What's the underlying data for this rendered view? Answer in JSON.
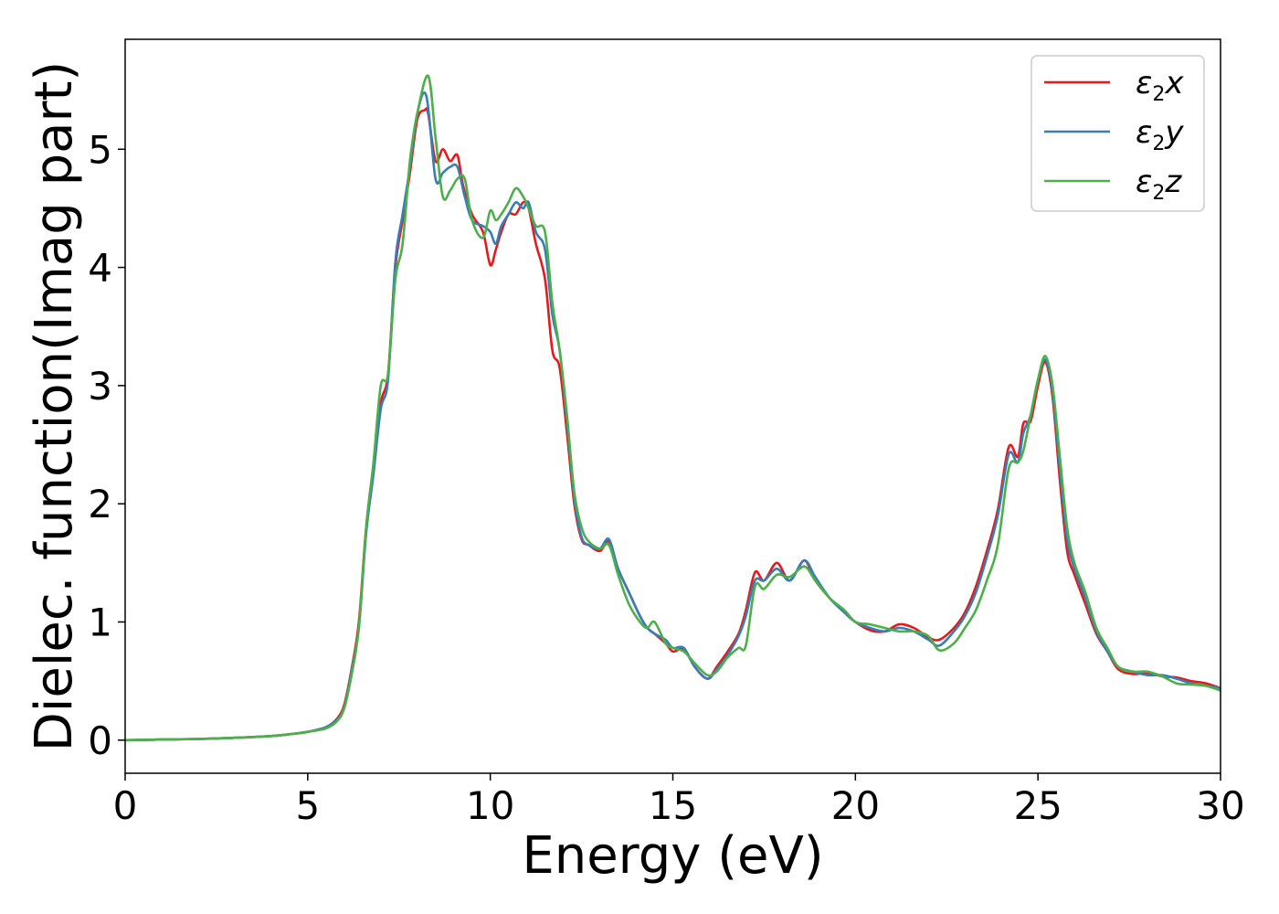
{
  "chart_data": {
    "type": "line",
    "xlabel": "Energy (eV)",
    "ylabel": "Dielec. function(Imag part)",
    "xlim": [
      0,
      30
    ],
    "ylim": [
      -0.28,
      5.93
    ],
    "xticks": [
      0,
      5,
      10,
      15,
      20,
      25,
      30
    ],
    "yticks": [
      0,
      1,
      2,
      3,
      4,
      5
    ],
    "grid": false,
    "legend_position": "top-right",
    "series": [
      {
        "name_parts": [
          "ε",
          "2",
          "x"
        ],
        "color": "#e41a1c",
        "x": [
          0,
          1,
          2,
          3,
          4,
          4.5,
          5,
          5.5,
          5.8,
          6,
          6.2,
          6.4,
          6.6,
          6.8,
          7,
          7.2,
          7.4,
          7.6,
          7.8,
          8,
          8.2,
          8.3,
          8.5,
          8.7,
          8.9,
          9.1,
          9.25,
          9.5,
          9.8,
          10,
          10.15,
          10.3,
          10.5,
          10.7,
          10.9,
          11.05,
          11.25,
          11.5,
          11.7,
          11.9,
          12.1,
          12.3,
          12.5,
          12.7,
          13,
          13.25,
          13.5,
          13.8,
          14.1,
          14.3,
          14.5,
          14.8,
          15,
          15.3,
          15.6,
          15.95,
          16.2,
          16.5,
          16.8,
          17.0,
          17.25,
          17.5,
          17.85,
          18.2,
          18.6,
          18.9,
          19.3,
          19.7,
          20,
          20.4,
          20.8,
          21.2,
          21.6,
          22,
          22.3,
          22.7,
          23,
          23.3,
          23.6,
          23.9,
          24.2,
          24.45,
          24.6,
          24.8,
          25.0,
          25.2,
          25.4,
          25.6,
          25.8,
          26,
          26.3,
          26.6,
          26.9,
          27.2,
          27.6,
          28,
          28.4,
          28.8,
          29.2,
          29.6,
          30
        ],
        "y": [
          0.0,
          0.005,
          0.01,
          0.02,
          0.035,
          0.05,
          0.07,
          0.11,
          0.18,
          0.3,
          0.6,
          1.0,
          1.8,
          2.3,
          2.85,
          3.1,
          4.0,
          4.4,
          4.8,
          5.25,
          5.33,
          5.3,
          4.9,
          5.0,
          4.9,
          4.95,
          4.7,
          4.45,
          4.3,
          4.02,
          4.15,
          4.3,
          4.45,
          4.45,
          4.55,
          4.5,
          4.2,
          3.9,
          3.3,
          3.15,
          2.6,
          2.0,
          1.7,
          1.65,
          1.6,
          1.68,
          1.45,
          1.25,
          1.05,
          0.95,
          0.9,
          0.82,
          0.75,
          0.77,
          0.62,
          0.52,
          0.62,
          0.75,
          0.9,
          1.1,
          1.42,
          1.35,
          1.5,
          1.35,
          1.52,
          1.35,
          1.2,
          1.08,
          1.0,
          0.93,
          0.92,
          0.98,
          0.95,
          0.87,
          0.85,
          0.95,
          1.08,
          1.3,
          1.6,
          1.95,
          2.48,
          2.4,
          2.68,
          2.7,
          3.0,
          3.2,
          2.9,
          2.2,
          1.6,
          1.4,
          1.15,
          0.9,
          0.75,
          0.6,
          0.56,
          0.57,
          0.54,
          0.53,
          0.5,
          0.48,
          0.44
        ]
      },
      {
        "name_parts": [
          "ε",
          "2",
          "y"
        ],
        "color": "#377eb8",
        "x": [
          0,
          1,
          2,
          3,
          4,
          4.5,
          5,
          5.5,
          5.8,
          6,
          6.2,
          6.4,
          6.6,
          6.8,
          7,
          7.2,
          7.4,
          7.6,
          7.8,
          8,
          8.25,
          8.5,
          8.7,
          8.9,
          9.1,
          9.3,
          9.5,
          9.8,
          10,
          10.15,
          10.3,
          10.5,
          10.7,
          10.9,
          11.05,
          11.25,
          11.5,
          11.7,
          11.9,
          12.1,
          12.3,
          12.5,
          12.7,
          13,
          13.25,
          13.5,
          13.8,
          14.1,
          14.3,
          14.5,
          14.8,
          15,
          15.3,
          15.6,
          15.95,
          16.2,
          16.5,
          16.8,
          17.0,
          17.25,
          17.5,
          17.85,
          18.2,
          18.6,
          18.9,
          19.3,
          19.7,
          20,
          20.4,
          20.8,
          21.2,
          21.6,
          22,
          22.3,
          22.7,
          23,
          23.3,
          23.6,
          23.9,
          24.2,
          24.45,
          24.6,
          24.8,
          25.0,
          25.2,
          25.4,
          25.6,
          25.8,
          26,
          26.3,
          26.6,
          26.9,
          27.2,
          27.6,
          28,
          28.4,
          28.8,
          29.2,
          29.6,
          30
        ],
        "y": [
          0.0,
          0.005,
          0.01,
          0.02,
          0.035,
          0.05,
          0.07,
          0.11,
          0.17,
          0.28,
          0.58,
          0.95,
          1.75,
          2.25,
          2.8,
          3.05,
          4.05,
          4.45,
          4.85,
          5.3,
          5.45,
          4.75,
          4.8,
          4.85,
          4.85,
          4.6,
          4.4,
          4.35,
          4.3,
          4.2,
          4.35,
          4.45,
          4.55,
          4.5,
          4.55,
          4.3,
          4.15,
          3.6,
          3.3,
          2.7,
          2.05,
          1.72,
          1.65,
          1.62,
          1.7,
          1.45,
          1.25,
          1.05,
          0.95,
          0.9,
          0.85,
          0.78,
          0.78,
          0.62,
          0.52,
          0.6,
          0.72,
          0.88,
          1.05,
          1.35,
          1.35,
          1.45,
          1.35,
          1.52,
          1.38,
          1.2,
          1.08,
          1.0,
          0.95,
          0.92,
          0.95,
          0.92,
          0.85,
          0.8,
          0.92,
          1.05,
          1.25,
          1.55,
          1.9,
          2.42,
          2.35,
          2.6,
          2.75,
          3.05,
          3.22,
          2.95,
          2.3,
          1.7,
          1.45,
          1.2,
          0.92,
          0.75,
          0.62,
          0.58,
          0.55,
          0.55,
          0.52,
          0.48,
          0.46,
          0.44
        ]
      },
      {
        "name_parts": [
          "ε",
          "2",
          "z"
        ],
        "color": "#4daf4a",
        "x": [
          0,
          1,
          2,
          3,
          4,
          4.5,
          5,
          5.5,
          5.8,
          6,
          6.2,
          6.4,
          6.6,
          6.8,
          7,
          7.2,
          7.4,
          7.6,
          7.8,
          8,
          8.3,
          8.5,
          8.7,
          8.9,
          9.1,
          9.3,
          9.5,
          9.8,
          10,
          10.15,
          10.3,
          10.5,
          10.7,
          10.9,
          11.05,
          11.25,
          11.5,
          11.7,
          11.9,
          12.1,
          12.3,
          12.5,
          12.7,
          13,
          13.25,
          13.5,
          13.8,
          14.1,
          14.3,
          14.5,
          14.8,
          15,
          15.3,
          15.6,
          15.95,
          16.2,
          16.5,
          16.8,
          17.0,
          17.25,
          17.5,
          17.85,
          18.2,
          18.6,
          18.9,
          19.3,
          19.7,
          20,
          20.4,
          20.8,
          21.2,
          21.6,
          22,
          22.3,
          22.7,
          23,
          23.3,
          23.6,
          23.9,
          24.2,
          24.45,
          24.6,
          24.8,
          25.0,
          25.2,
          25.4,
          25.6,
          25.8,
          26,
          26.3,
          26.6,
          26.9,
          27.2,
          27.6,
          28,
          28.4,
          28.8,
          29.2,
          29.6,
          30
        ],
        "y": [
          0.0,
          0.005,
          0.01,
          0.02,
          0.035,
          0.05,
          0.07,
          0.1,
          0.16,
          0.27,
          0.55,
          0.95,
          1.8,
          2.35,
          3.0,
          3.1,
          3.9,
          4.2,
          4.9,
          5.3,
          5.62,
          5.1,
          4.6,
          4.65,
          4.75,
          4.75,
          4.4,
          4.25,
          4.48,
          4.4,
          4.45,
          4.55,
          4.67,
          4.6,
          4.5,
          4.35,
          4.3,
          3.7,
          3.3,
          2.75,
          2.1,
          1.8,
          1.68,
          1.62,
          1.65,
          1.4,
          1.15,
          1.0,
          0.95,
          1.0,
          0.82,
          0.78,
          0.75,
          0.65,
          0.55,
          0.58,
          0.7,
          0.78,
          0.8,
          1.3,
          1.28,
          1.4,
          1.38,
          1.47,
          1.35,
          1.2,
          1.1,
          1.0,
          0.98,
          0.95,
          0.92,
          0.92,
          0.88,
          0.76,
          0.82,
          0.95,
          1.1,
          1.35,
          1.65,
          2.3,
          2.35,
          2.45,
          2.75,
          3.05,
          3.25,
          3.0,
          2.4,
          1.8,
          1.5,
          1.25,
          0.95,
          0.78,
          0.62,
          0.58,
          0.58,
          0.54,
          0.48,
          0.47,
          0.46,
          0.42
        ]
      }
    ]
  }
}
